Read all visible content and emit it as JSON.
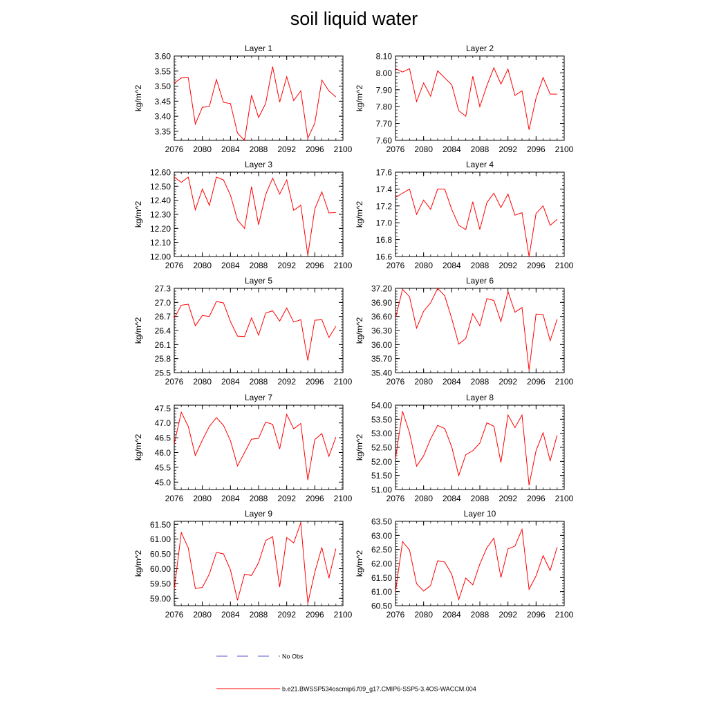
{
  "page": {
    "title": "soil liquid water"
  },
  "legend": {
    "items": [
      {
        "label": "No Obs",
        "color": "#5555cc",
        "style": "dashed"
      },
      {
        "label": "b.e21.BWSSP534oscmip6.f09_g17.CMIP6-SSP5-3.4OS-WACCM.004",
        "color": "#ff0000",
        "style": "solid"
      }
    ]
  },
  "chart_data": [
    {
      "type": "line",
      "title": "Layer 1",
      "ylabel": "kg/m^2",
      "x": [
        2076,
        2077,
        2078,
        2079,
        2080,
        2081,
        2082,
        2083,
        2084,
        2085,
        2086,
        2087,
        2088,
        2089,
        2090,
        2091,
        2092,
        2093,
        2094,
        2095,
        2096,
        2097,
        2098,
        2099
      ],
      "xlim": [
        2076,
        2100
      ],
      "xticks": [
        "2076",
        "2080",
        "2084",
        "2088",
        "2092",
        "2096",
        "2100"
      ],
      "ylim": [
        3.32,
        3.6
      ],
      "yticks": [
        "3.35",
        "3.40",
        "3.45",
        "3.50",
        "3.55",
        "3.60"
      ],
      "series": [
        {
          "color": "#ff0000",
          "values": [
            3.51,
            3.527,
            3.528,
            3.374,
            3.43,
            3.432,
            3.522,
            3.446,
            3.442,
            3.344,
            3.32,
            3.47,
            3.396,
            3.442,
            3.565,
            3.447,
            3.531,
            3.452,
            3.484,
            3.327,
            3.377,
            3.52,
            3.484,
            3.464
          ]
        }
      ]
    },
    {
      "type": "line",
      "title": "Layer 2",
      "ylabel": "kg/m^2",
      "x": [
        2076,
        2077,
        2078,
        2079,
        2080,
        2081,
        2082,
        2083,
        2084,
        2085,
        2086,
        2087,
        2088,
        2089,
        2090,
        2091,
        2092,
        2093,
        2094,
        2095,
        2096,
        2097,
        2098,
        2099
      ],
      "xlim": [
        2076,
        2100
      ],
      "xticks": [
        "2076",
        "2080",
        "2084",
        "2088",
        "2092",
        "2096",
        "2100"
      ],
      "ylim": [
        7.6,
        8.1
      ],
      "yticks": [
        "7.60",
        "7.70",
        "7.80",
        "7.90",
        "8.00",
        "8.10"
      ],
      "series": [
        {
          "color": "#ff0000",
          "values": [
            8.025,
            8.005,
            8.025,
            7.83,
            7.94,
            7.862,
            8.012,
            7.97,
            7.93,
            7.776,
            7.743,
            7.98,
            7.8,
            7.925,
            8.03,
            7.934,
            8.022,
            7.866,
            7.894,
            7.663,
            7.85,
            7.972,
            7.874,
            7.874
          ]
        }
      ]
    },
    {
      "type": "line",
      "title": "Layer 3",
      "ylabel": "kg/m^2",
      "x": [
        2076,
        2077,
        2078,
        2079,
        2080,
        2081,
        2082,
        2083,
        2084,
        2085,
        2086,
        2087,
        2088,
        2089,
        2090,
        2091,
        2092,
        2093,
        2094,
        2095,
        2096,
        2097,
        2098,
        2099
      ],
      "xlim": [
        2076,
        2100
      ],
      "xticks": [
        "2076",
        "2080",
        "2084",
        "2088",
        "2092",
        "2096",
        "2100"
      ],
      "ylim": [
        12.0,
        12.6
      ],
      "yticks": [
        "12.00",
        "12.10",
        "12.20",
        "12.30",
        "12.40",
        "12.50",
        "12.60"
      ],
      "series": [
        {
          "color": "#ff0000",
          "values": [
            12.565,
            12.527,
            12.565,
            12.332,
            12.48,
            12.364,
            12.565,
            12.545,
            12.436,
            12.26,
            12.2,
            12.497,
            12.226,
            12.44,
            12.557,
            12.444,
            12.545,
            12.328,
            12.365,
            12.01,
            12.338,
            12.46,
            12.31,
            12.313
          ]
        }
      ]
    },
    {
      "type": "line",
      "title": "Layer 4",
      "ylabel": "kg/m^2",
      "x": [
        2076,
        2077,
        2078,
        2079,
        2080,
        2081,
        2082,
        2083,
        2084,
        2085,
        2086,
        2087,
        2088,
        2089,
        2090,
        2091,
        2092,
        2093,
        2094,
        2095,
        2096,
        2097,
        2098,
        2099
      ],
      "xlim": [
        2076,
        2100
      ],
      "xticks": [
        "2076",
        "2080",
        "2084",
        "2088",
        "2092",
        "2096",
        "2100"
      ],
      "ylim": [
        16.6,
        17.6
      ],
      "yticks": [
        "16.6",
        "16.8",
        "17.0",
        "17.2",
        "17.4",
        "17.6"
      ],
      "series": [
        {
          "color": "#ff0000",
          "values": [
            17.3,
            17.35,
            17.4,
            17.1,
            17.27,
            17.16,
            17.4,
            17.4,
            17.16,
            16.97,
            16.92,
            17.25,
            16.92,
            17.24,
            17.35,
            17.18,
            17.34,
            17.09,
            17.12,
            16.6,
            17.11,
            17.2,
            16.97,
            17.04
          ]
        }
      ]
    },
    {
      "type": "line",
      "title": "Layer 5",
      "ylabel": "kg/m^2",
      "x": [
        2076,
        2077,
        2078,
        2079,
        2080,
        2081,
        2082,
        2083,
        2084,
        2085,
        2086,
        2087,
        2088,
        2089,
        2090,
        2091,
        2092,
        2093,
        2094,
        2095,
        2096,
        2097,
        2098,
        2099
      ],
      "xlim": [
        2076,
        2100
      ],
      "xticks": [
        "2076",
        "2080",
        "2084",
        "2088",
        "2092",
        "2096",
        "2100"
      ],
      "ylim": [
        25.5,
        27.3
      ],
      "yticks": [
        "25.5",
        "25.8",
        "26.1",
        "26.4",
        "26.7",
        "27.0",
        "27.3"
      ],
      "series": [
        {
          "color": "#ff0000",
          "values": [
            26.66,
            26.94,
            26.96,
            26.5,
            26.72,
            26.7,
            27.02,
            26.99,
            26.59,
            26.28,
            26.27,
            26.67,
            26.3,
            26.77,
            26.82,
            26.6,
            26.88,
            26.58,
            26.63,
            25.76,
            26.62,
            26.63,
            26.25,
            26.49
          ]
        }
      ]
    },
    {
      "type": "line",
      "title": "Layer 6",
      "ylabel": "kg/m^2",
      "x": [
        2076,
        2077,
        2078,
        2079,
        2080,
        2081,
        2082,
        2083,
        2084,
        2085,
        2086,
        2087,
        2088,
        2089,
        2090,
        2091,
        2092,
        2093,
        2094,
        2095,
        2096,
        2097,
        2098,
        2099
      ],
      "xlim": [
        2076,
        2100
      ],
      "xticks": [
        "2076",
        "2080",
        "2084",
        "2088",
        "2092",
        "2096",
        "2100"
      ],
      "ylim": [
        35.4,
        37.2
      ],
      "yticks": [
        "35.40",
        "35.70",
        "36.00",
        "36.30",
        "36.60",
        "36.90",
        "37.20"
      ],
      "series": [
        {
          "color": "#ff0000",
          "values": [
            36.56,
            37.18,
            37.02,
            36.35,
            36.71,
            36.89,
            37.2,
            37.04,
            36.56,
            36.01,
            36.13,
            36.66,
            36.4,
            36.98,
            36.94,
            36.49,
            37.13,
            36.69,
            36.79,
            35.45,
            36.65,
            36.64,
            36.08,
            36.54
          ]
        }
      ]
    },
    {
      "type": "line",
      "title": "Layer 7",
      "ylabel": "kg/m^2",
      "x": [
        2076,
        2077,
        2078,
        2079,
        2080,
        2081,
        2082,
        2083,
        2084,
        2085,
        2086,
        2087,
        2088,
        2089,
        2090,
        2091,
        2092,
        2093,
        2094,
        2095,
        2096,
        2097,
        2098,
        2099
      ],
      "xlim": [
        2076,
        2100
      ],
      "xticks": [
        "2076",
        "2080",
        "2084",
        "2088",
        "2092",
        "2096",
        "2100"
      ],
      "ylim": [
        44.75,
        47.6
      ],
      "yticks": [
        "45.0",
        "45.5",
        "46.0",
        "46.5",
        "47.0",
        "47.5"
      ],
      "series": [
        {
          "color": "#ff0000",
          "values": [
            46.3,
            47.36,
            46.88,
            45.9,
            46.42,
            46.88,
            47.18,
            46.92,
            46.4,
            45.55,
            46.0,
            46.45,
            46.48,
            47.03,
            46.95,
            46.12,
            47.29,
            46.8,
            46.98,
            45.07,
            46.44,
            46.64,
            45.87,
            46.52
          ]
        }
      ]
    },
    {
      "type": "line",
      "title": "Layer 8",
      "ylabel": "kg/m^2",
      "x": [
        2076,
        2077,
        2078,
        2079,
        2080,
        2081,
        2082,
        2083,
        2084,
        2085,
        2086,
        2087,
        2088,
        2089,
        2090,
        2091,
        2092,
        2093,
        2094,
        2095,
        2096,
        2097,
        2098,
        2099
      ],
      "xlim": [
        2076,
        2100
      ],
      "xticks": [
        "2076",
        "2080",
        "2084",
        "2088",
        "2092",
        "2096",
        "2100"
      ],
      "ylim": [
        51.0,
        54.0
      ],
      "yticks": [
        "51.00",
        "51.50",
        "52.00",
        "52.50",
        "53.00",
        "53.50",
        "54.00"
      ],
      "series": [
        {
          "color": "#ff0000",
          "values": [
            52.1,
            53.78,
            53.02,
            51.83,
            52.2,
            52.8,
            53.28,
            53.17,
            52.52,
            51.5,
            52.24,
            52.38,
            52.65,
            53.37,
            53.25,
            51.96,
            53.65,
            53.2,
            53.65,
            51.15,
            52.38,
            53.02,
            52.02,
            52.93
          ]
        }
      ]
    },
    {
      "type": "line",
      "title": "Layer 9",
      "ylabel": "kg/m^2",
      "x": [
        2076,
        2077,
        2078,
        2079,
        2080,
        2081,
        2082,
        2083,
        2084,
        2085,
        2086,
        2087,
        2088,
        2089,
        2090,
        2091,
        2092,
        2093,
        2094,
        2095,
        2096,
        2097,
        2098,
        2099
      ],
      "xlim": [
        2076,
        2100
      ],
      "xticks": [
        "2076",
        "2080",
        "2084",
        "2088",
        "2092",
        "2096",
        "2100"
      ],
      "ylim": [
        58.75,
        61.6
      ],
      "yticks": [
        "59.00",
        "59.50",
        "60.00",
        "60.50",
        "61.00",
        "61.50"
      ],
      "series": [
        {
          "color": "#ff0000",
          "values": [
            59.3,
            61.22,
            60.7,
            59.33,
            59.37,
            59.82,
            60.55,
            60.5,
            59.96,
            58.93,
            59.81,
            59.77,
            60.2,
            60.95,
            61.08,
            59.38,
            61.05,
            60.87,
            61.55,
            58.83,
            59.88,
            60.72,
            59.68,
            60.68
          ]
        }
      ]
    },
    {
      "type": "line",
      "title": "Layer 10",
      "ylabel": "kg/m^2",
      "x": [
        2076,
        2077,
        2078,
        2079,
        2080,
        2081,
        2082,
        2083,
        2084,
        2085,
        2086,
        2087,
        2088,
        2089,
        2090,
        2091,
        2092,
        2093,
        2094,
        2095,
        2096,
        2097,
        2098,
        2099
      ],
      "xlim": [
        2076,
        2100
      ],
      "xticks": [
        "2076",
        "2080",
        "2084",
        "2088",
        "2092",
        "2096",
        "2100"
      ],
      "ylim": [
        60.5,
        63.5
      ],
      "yticks": [
        "60.50",
        "61.00",
        "61.50",
        "62.00",
        "62.50",
        "63.00",
        "63.50"
      ],
      "series": [
        {
          "color": "#ff0000",
          "values": [
            61.0,
            62.78,
            62.48,
            61.28,
            61.02,
            61.22,
            62.1,
            62.05,
            61.62,
            60.72,
            61.48,
            61.24,
            61.98,
            62.56,
            62.9,
            61.5,
            62.52,
            62.62,
            63.22,
            61.08,
            61.56,
            62.28,
            61.75,
            62.58
          ]
        }
      ]
    }
  ]
}
